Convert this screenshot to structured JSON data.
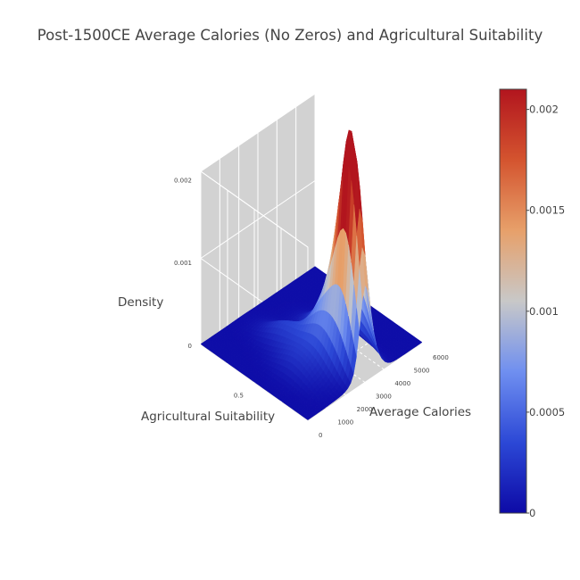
{
  "chart_data": {
    "type": "surface3d",
    "title": "Post-1500CE Average Calories (No Zeros) and Agricultural Suitability",
    "xlabel": "Average Calories",
    "ylabel": "Agricultural Suitability",
    "zlabel": "Density",
    "x_ticks": [
      "0",
      "1000",
      "2000",
      "3000",
      "4000",
      "5000",
      "6000"
    ],
    "y_ticks": [
      "0.5"
    ],
    "z_ticks": [
      "0",
      "0.001",
      "0.002"
    ],
    "zlim": [
      0,
      0.0021
    ],
    "colorscale": [
      "#0d0aa6",
      "#2c48d6",
      "#6f8ff0",
      "#c8c8c8",
      "#e7a06a",
      "#d4542f",
      "#b2151e"
    ],
    "colorbar": {
      "range": [
        0,
        0.0021
      ],
      "ticks": [
        {
          "value": 0,
          "label": "0"
        },
        {
          "value": 0.0005,
          "label": "0.0005"
        },
        {
          "value": 0.001,
          "label": "0.001"
        },
        {
          "value": 0.0015,
          "label": "0.0015"
        },
        {
          "value": 0.002,
          "label": "0.002"
        }
      ]
    },
    "peaks": [
      {
        "x_calories": 3000,
        "y_suitability": 0.12,
        "density": 0.00205
      },
      {
        "x_calories": 3300,
        "y_suitability": 0.2,
        "density": 0.00095
      },
      {
        "x_calories": 2600,
        "y_suitability": 0.28,
        "density": 0.0006
      },
      {
        "x_calories": 3600,
        "y_suitability": 0.45,
        "density": 0.00035
      },
      {
        "x_calories": 2200,
        "y_suitability": 0.6,
        "density": 0.00025
      },
      {
        "x_calories": 1500,
        "y_suitability": 0.35,
        "density": 0.0002
      }
    ]
  }
}
